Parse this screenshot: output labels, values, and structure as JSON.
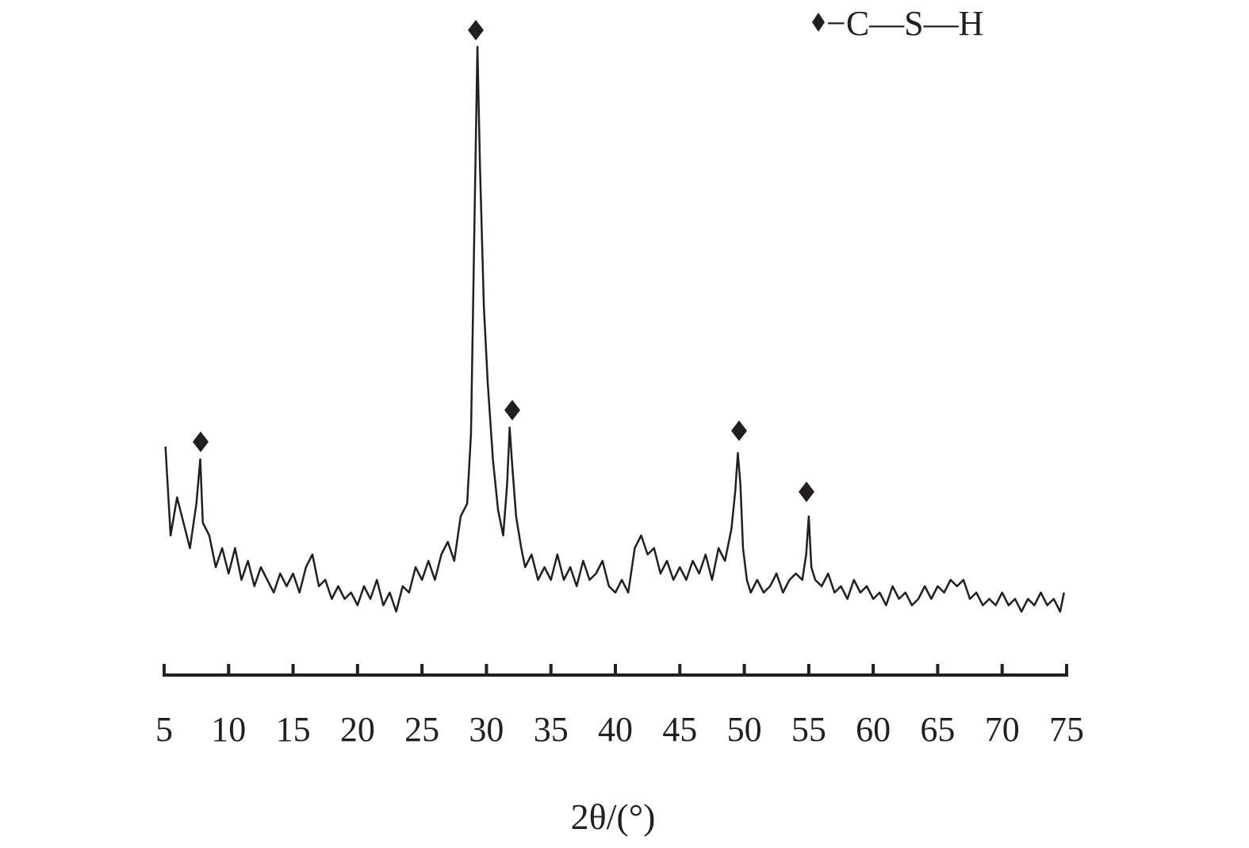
{
  "chart_data": {
    "type": "line",
    "xlabel": "2θ/(°)",
    "legend": "−C—S—H",
    "xlim": [
      5,
      75
    ],
    "xticks": [
      5,
      10,
      15,
      20,
      25,
      30,
      35,
      40,
      45,
      50,
      55,
      60,
      65,
      70,
      75
    ],
    "ylim": [
      0,
      100
    ],
    "series": [
      {
        "color": "#231f20",
        "x": [
          5.1,
          5.5,
          6,
          6.5,
          7,
          7.5,
          7.8,
          8,
          8.5,
          9,
          9.5,
          10,
          10.5,
          11,
          11.5,
          12,
          12.5,
          13,
          13.5,
          14,
          14.5,
          15,
          15.5,
          16,
          16.5,
          17,
          17.5,
          18,
          18.5,
          19,
          19.5,
          20,
          20.5,
          21,
          21.5,
          22,
          22.5,
          23,
          23.5,
          24,
          24.5,
          25,
          25.5,
          26,
          26.5,
          27,
          27.5,
          28,
          28.5,
          28.8,
          29.1,
          29.3,
          29.5,
          29.8,
          30.1,
          30.5,
          30.9,
          31.3,
          31.6,
          31.8,
          32.0,
          32.3,
          32.7,
          33,
          33.5,
          34,
          34.5,
          35,
          35.5,
          36,
          36.5,
          37,
          37.5,
          38,
          38.5,
          39,
          39.5,
          40,
          40.5,
          41,
          41.5,
          42,
          42.5,
          43,
          43.5,
          44,
          44.5,
          45,
          45.5,
          46,
          46.5,
          47,
          47.5,
          48,
          48.5,
          49,
          49.3,
          49.5,
          49.7,
          49.9,
          50.2,
          50.5,
          51,
          51.5,
          52,
          52.5,
          53,
          53.5,
          54,
          54.5,
          54.8,
          55,
          55.2,
          55.5,
          56,
          56.5,
          57,
          57.5,
          58,
          58.5,
          59,
          59.5,
          60,
          60.5,
          61,
          61.5,
          62,
          62.5,
          63,
          63.5,
          64,
          64.5,
          65,
          65.5,
          66,
          66.5,
          67,
          67.5,
          68,
          68.5,
          69,
          69.5,
          70,
          70.5,
          71,
          71.5,
          72,
          72.5,
          73,
          73.5,
          74,
          74.5,
          74.8
        ],
        "values": [
          36,
          22,
          28,
          24,
          20,
          27,
          34,
          24,
          22,
          17,
          20,
          16,
          20,
          15,
          18,
          14,
          17,
          15,
          13,
          16,
          14,
          16,
          13,
          17,
          19,
          14,
          15,
          12,
          14,
          12,
          13,
          11,
          14,
          12,
          15,
          11,
          13,
          10,
          14,
          13,
          17,
          15,
          18,
          15,
          19,
          21,
          18,
          25,
          27,
          38,
          75,
          99,
          80,
          58,
          46,
          34,
          26,
          22,
          30,
          39,
          33,
          25,
          20,
          17,
          19,
          15,
          17,
          15,
          19,
          15,
          17,
          14,
          18,
          15,
          16,
          18,
          14,
          13,
          15,
          13,
          20,
          22,
          19,
          20,
          16,
          18,
          15,
          17,
          15,
          18,
          16,
          19,
          15,
          20,
          18,
          23,
          29,
          35,
          30,
          20,
          15,
          13,
          15,
          13,
          14,
          16,
          13,
          15,
          16,
          15,
          19,
          25,
          17,
          15,
          14,
          16,
          13,
          14,
          12,
          15,
          13,
          14,
          12,
          13,
          11,
          14,
          12,
          13,
          11,
          12,
          14,
          12,
          14,
          13,
          15,
          14,
          15,
          12,
          13,
          11,
          12,
          11,
          13,
          11,
          12,
          10,
          12,
          11,
          13,
          11,
          12,
          10,
          13
        ]
      }
    ]
  }
}
